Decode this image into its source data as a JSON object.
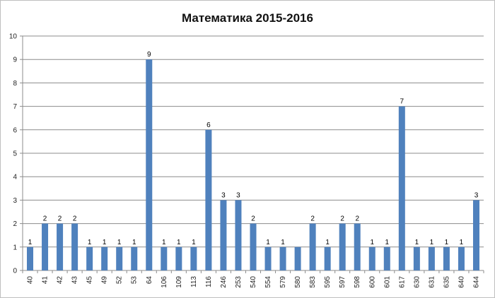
{
  "chart_data": {
    "type": "bar",
    "title": "Математика 2015-2016",
    "xlabel": "",
    "ylabel": "",
    "ylim": [
      0,
      10
    ],
    "yticks": [
      0,
      1,
      2,
      3,
      4,
      5,
      6,
      7,
      8,
      9,
      10
    ],
    "grid": true,
    "legend": "none",
    "bar_color": "#4F81BD",
    "categories": [
      "40",
      "41",
      "42",
      "43",
      "45",
      "49",
      "52",
      "53",
      "64",
      "106",
      "109",
      "113",
      "116",
      "246",
      "253",
      "540",
      "554",
      "579",
      "580",
      "583",
      "595",
      "597",
      "598",
      "600",
      "601",
      "617",
      "630",
      "631",
      "635",
      "640",
      "644"
    ],
    "values": [
      1,
      2,
      2,
      2,
      1,
      1,
      1,
      1,
      9,
      1,
      1,
      1,
      6,
      3,
      3,
      2,
      1,
      1,
      1,
      2,
      1,
      2,
      2,
      1,
      1,
      7,
      1,
      1,
      1,
      1,
      3
    ],
    "data_labels": [
      1,
      2,
      2,
      2,
      1,
      1,
      1,
      1,
      9,
      1,
      1,
      1,
      6,
      3,
      3,
      2,
      1,
      1,
      null,
      2,
      1,
      2,
      2,
      1,
      1,
      7,
      1,
      1,
      1,
      1,
      3
    ]
  }
}
